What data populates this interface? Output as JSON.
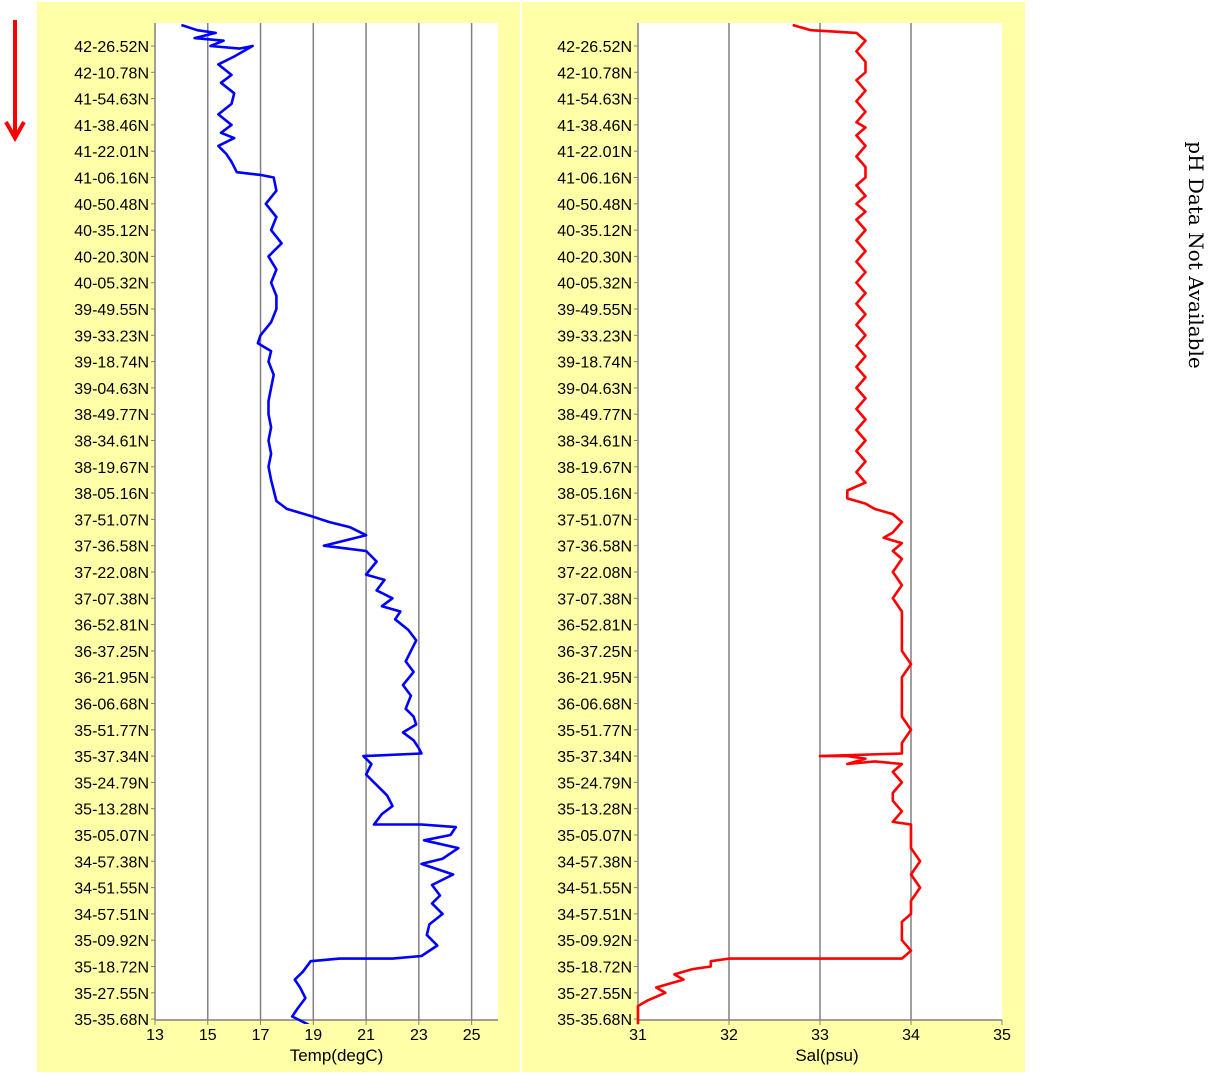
{
  "note": {
    "text": "pH Data Not Available"
  },
  "colors": {
    "panel_bg": "#ffffa8",
    "plot_bg": "#ffffff",
    "grid": "#808080",
    "arrow": "#ff0000"
  },
  "direction_arrow": {
    "icon": "arrow-down-icon",
    "meaning": "downward"
  },
  "chart_data": [
    {
      "type": "line",
      "title": "",
      "xlabel": "Temp(degC)",
      "ylabel": "",
      "xlim": [
        13,
        26
      ],
      "x_ticks": [
        "13",
        "15",
        "17",
        "19",
        "21",
        "23",
        "25"
      ],
      "x_tick_values": [
        13,
        15,
        17,
        19,
        21,
        23,
        25
      ],
      "grid": "vertical",
      "y_categories": [
        "42-26.52N",
        "42-10.78N",
        "41-54.63N",
        "41-38.46N",
        "41-22.01N",
        "41-06.16N",
        "40-50.48N",
        "40-35.12N",
        "40-20.30N",
        "40-05.32N",
        "39-49.55N",
        "39-33.23N",
        "39-18.74N",
        "39-04.63N",
        "38-49.77N",
        "38-34.61N",
        "38-19.67N",
        "38-05.16N",
        "37-51.07N",
        "37-36.58N",
        "37-22.08N",
        "37-07.38N",
        "36-52.81N",
        "36-37.25N",
        "36-21.95N",
        "36-06.68N",
        "35-51.77N",
        "35-37.34N",
        "35-24.79N",
        "35-13.28N",
        "35-05.07N",
        "34-57.38N",
        "34-51.55N",
        "34-57.51N",
        "35-09.92N",
        "35-18.72N",
        "35-27.55N",
        "35-35.68N"
      ],
      "series": [
        {
          "color": "#0000ff",
          "points": [
            [
              14.0,
              -0.8
            ],
            [
              14.6,
              -0.6
            ],
            [
              15.3,
              -0.5
            ],
            [
              14.5,
              -0.3
            ],
            [
              15.6,
              -0.2
            ],
            [
              15.1,
              0.0
            ],
            [
              16.2,
              0.1
            ],
            [
              16.7,
              0.0
            ],
            [
              16.0,
              0.4
            ],
            [
              15.4,
              0.7
            ],
            [
              15.9,
              1.1
            ],
            [
              15.5,
              1.4
            ],
            [
              16.0,
              1.8
            ],
            [
              15.9,
              2.2
            ],
            [
              15.4,
              2.6
            ],
            [
              15.9,
              3.0
            ],
            [
              15.5,
              3.3
            ],
            [
              16.0,
              3.5
            ],
            [
              15.4,
              3.8
            ],
            [
              15.7,
              4.1
            ],
            [
              15.9,
              4.4
            ],
            [
              16.1,
              4.8
            ],
            [
              17.0,
              4.9
            ],
            [
              17.5,
              5.0
            ],
            [
              17.6,
              5.5
            ],
            [
              17.2,
              6.0
            ],
            [
              17.6,
              6.5
            ],
            [
              17.4,
              7.0
            ],
            [
              17.8,
              7.5
            ],
            [
              17.3,
              8.0
            ],
            [
              17.6,
              8.5
            ],
            [
              17.4,
              9.0
            ],
            [
              17.6,
              9.5
            ],
            [
              17.6,
              10.0
            ],
            [
              17.4,
              10.5
            ],
            [
              17.0,
              11.0
            ],
            [
              16.9,
              11.3
            ],
            [
              17.4,
              11.6
            ],
            [
              17.3,
              12.0
            ],
            [
              17.5,
              12.5
            ],
            [
              17.4,
              13.0
            ],
            [
              17.3,
              13.5
            ],
            [
              17.3,
              14.0
            ],
            [
              17.4,
              14.5
            ],
            [
              17.3,
              15.0
            ],
            [
              17.4,
              15.5
            ],
            [
              17.3,
              16.0
            ],
            [
              17.4,
              16.5
            ],
            [
              17.6,
              17.3
            ],
            [
              18.0,
              17.6
            ],
            [
              19.0,
              17.9
            ],
            [
              19.6,
              18.1
            ],
            [
              20.4,
              18.3
            ],
            [
              21.0,
              18.6
            ],
            [
              19.4,
              19.0
            ],
            [
              20.2,
              19.1
            ],
            [
              21.0,
              19.2
            ],
            [
              21.4,
              19.6
            ],
            [
              21.0,
              20.1
            ],
            [
              21.7,
              20.3
            ],
            [
              21.4,
              20.7
            ],
            [
              22.0,
              21.0
            ],
            [
              21.6,
              21.3
            ],
            [
              22.3,
              21.5
            ],
            [
              22.1,
              21.8
            ],
            [
              22.6,
              22.2
            ],
            [
              22.9,
              22.6
            ],
            [
              22.7,
              23.0
            ],
            [
              22.5,
              23.4
            ],
            [
              22.8,
              23.8
            ],
            [
              22.4,
              24.3
            ],
            [
              22.7,
              24.7
            ],
            [
              22.5,
              25.2
            ],
            [
              22.8,
              25.5
            ],
            [
              22.9,
              25.8
            ],
            [
              22.4,
              26.1
            ],
            [
              22.8,
              26.4
            ],
            [
              23.0,
              26.7
            ],
            [
              23.1,
              26.9
            ],
            [
              20.9,
              27.0
            ],
            [
              21.2,
              27.3
            ],
            [
              21.0,
              27.7
            ],
            [
              21.3,
              28.0
            ],
            [
              21.8,
              28.5
            ],
            [
              22.0,
              28.9
            ],
            [
              21.6,
              29.2
            ],
            [
              21.3,
              29.6
            ],
            [
              23.1,
              29.6
            ],
            [
              24.4,
              29.7
            ],
            [
              24.2,
              30.0
            ],
            [
              23.2,
              30.2
            ],
            [
              24.5,
              30.5
            ],
            [
              23.9,
              30.9
            ],
            [
              23.1,
              31.1
            ],
            [
              24.3,
              31.5
            ],
            [
              23.5,
              31.9
            ],
            [
              23.8,
              32.3
            ],
            [
              23.5,
              32.6
            ],
            [
              23.9,
              33.0
            ],
            [
              23.4,
              33.4
            ],
            [
              23.3,
              33.8
            ],
            [
              23.7,
              34.2
            ],
            [
              23.1,
              34.6
            ],
            [
              22.0,
              34.7
            ],
            [
              20.0,
              34.7
            ],
            [
              18.9,
              34.8
            ],
            [
              18.6,
              35.2
            ],
            [
              18.3,
              35.5
            ],
            [
              18.5,
              35.8
            ],
            [
              18.7,
              36.2
            ],
            [
              18.4,
              36.6
            ],
            [
              18.2,
              36.9
            ],
            [
              18.8,
              37.2
            ],
            [
              18.5,
              37.5
            ],
            [
              19.0,
              37.7
            ],
            [
              18.6,
              38.0
            ],
            [
              18.9,
              38.5
            ]
          ]
        }
      ]
    },
    {
      "type": "line",
      "title": "",
      "xlabel": "Sal(psu)",
      "ylabel": "",
      "xlim": [
        31,
        35
      ],
      "x_ticks": [
        "31",
        "32",
        "33",
        "34",
        "35"
      ],
      "x_tick_values": [
        31,
        32,
        33,
        34,
        35
      ],
      "grid": "vertical",
      "y_categories": [
        "42-26.52N",
        "42-10.78N",
        "41-54.63N",
        "41-38.46N",
        "41-22.01N",
        "41-06.16N",
        "40-50.48N",
        "40-35.12N",
        "40-20.30N",
        "40-05.32N",
        "39-49.55N",
        "39-33.23N",
        "39-18.74N",
        "39-04.63N",
        "38-49.77N",
        "38-34.61N",
        "38-19.67N",
        "38-05.16N",
        "37-51.07N",
        "37-36.58N",
        "37-22.08N",
        "37-07.38N",
        "36-52.81N",
        "36-37.25N",
        "36-21.95N",
        "36-06.68N",
        "35-51.77N",
        "35-37.34N",
        "35-24.79N",
        "35-13.28N",
        "35-05.07N",
        "34-57.38N",
        "34-51.55N",
        "34-57.51N",
        "35-09.92N",
        "35-18.72N",
        "35-27.55N",
        "35-35.68N"
      ],
      "series": [
        {
          "color": "#ff0000",
          "points": [
            [
              32.7,
              -0.8
            ],
            [
              32.9,
              -0.6
            ],
            [
              33.4,
              -0.5
            ],
            [
              33.5,
              -0.2
            ],
            [
              33.4,
              0.2
            ],
            [
              33.5,
              0.6
            ],
            [
              33.5,
              1.0
            ],
            [
              33.4,
              1.3
            ],
            [
              33.5,
              1.7
            ],
            [
              33.4,
              2.1
            ],
            [
              33.5,
              2.5
            ],
            [
              33.4,
              2.9
            ],
            [
              33.5,
              3.1
            ],
            [
              33.4,
              3.4
            ],
            [
              33.5,
              3.8
            ],
            [
              33.4,
              4.2
            ],
            [
              33.5,
              4.6
            ],
            [
              33.5,
              5.0
            ],
            [
              33.4,
              5.3
            ],
            [
              33.5,
              5.7
            ],
            [
              33.4,
              6.0
            ],
            [
              33.5,
              6.3
            ],
            [
              33.4,
              6.6
            ],
            [
              33.5,
              7.0
            ],
            [
              33.4,
              7.4
            ],
            [
              33.5,
              7.8
            ],
            [
              33.4,
              8.2
            ],
            [
              33.5,
              8.6
            ],
            [
              33.4,
              9.0
            ],
            [
              33.5,
              9.4
            ],
            [
              33.4,
              9.8
            ],
            [
              33.5,
              10.2
            ],
            [
              33.4,
              10.6
            ],
            [
              33.5,
              11.0
            ],
            [
              33.4,
              11.4
            ],
            [
              33.5,
              11.8
            ],
            [
              33.4,
              12.2
            ],
            [
              33.5,
              12.6
            ],
            [
              33.4,
              13.0
            ],
            [
              33.5,
              13.4
            ],
            [
              33.4,
              13.8
            ],
            [
              33.5,
              14.2
            ],
            [
              33.4,
              14.6
            ],
            [
              33.5,
              15.0
            ],
            [
              33.4,
              15.4
            ],
            [
              33.5,
              15.8
            ],
            [
              33.4,
              16.2
            ],
            [
              33.5,
              16.6
            ],
            [
              33.3,
              16.9
            ],
            [
              33.3,
              17.2
            ],
            [
              33.4,
              17.3
            ],
            [
              33.5,
              17.4
            ],
            [
              33.6,
              17.6
            ],
            [
              33.8,
              17.8
            ],
            [
              33.9,
              18.1
            ],
            [
              33.8,
              18.5
            ],
            [
              33.7,
              18.7
            ],
            [
              33.9,
              18.9
            ],
            [
              33.8,
              19.2
            ],
            [
              33.9,
              19.5
            ],
            [
              33.8,
              20.0
            ],
            [
              33.9,
              20.5
            ],
            [
              33.8,
              21.0
            ],
            [
              33.9,
              21.5
            ],
            [
              33.9,
              22.0
            ],
            [
              33.9,
              22.5
            ],
            [
              33.9,
              23.0
            ],
            [
              34.0,
              23.5
            ],
            [
              33.9,
              24.0
            ],
            [
              33.9,
              24.5
            ],
            [
              33.9,
              25.0
            ],
            [
              33.9,
              25.5
            ],
            [
              34.0,
              26.0
            ],
            [
              33.9,
              26.5
            ],
            [
              33.9,
              26.9
            ],
            [
              33.0,
              27.0
            ],
            [
              33.3,
              27.0
            ],
            [
              33.5,
              27.1
            ],
            [
              33.3,
              27.3
            ],
            [
              33.6,
              27.2
            ],
            [
              33.9,
              27.3
            ],
            [
              33.8,
              27.6
            ],
            [
              33.9,
              28.0
            ],
            [
              33.8,
              28.4
            ],
            [
              33.8,
              28.7
            ],
            [
              33.9,
              29.1
            ],
            [
              33.8,
              29.5
            ],
            [
              34.0,
              29.6
            ],
            [
              34.0,
              30.0
            ],
            [
              34.0,
              30.5
            ],
            [
              34.1,
              31.0
            ],
            [
              34.0,
              31.5
            ],
            [
              34.1,
              32.0
            ],
            [
              34.0,
              32.5
            ],
            [
              34.0,
              33.0
            ],
            [
              33.9,
              33.3
            ],
            [
              33.9,
              33.6
            ],
            [
              33.9,
              34.0
            ],
            [
              34.0,
              34.4
            ],
            [
              33.9,
              34.7
            ],
            [
              32.0,
              34.7
            ],
            [
              31.8,
              34.8
            ],
            [
              31.8,
              35.0
            ],
            [
              31.6,
              35.1
            ],
            [
              31.4,
              35.3
            ],
            [
              31.5,
              35.5
            ],
            [
              31.2,
              35.8
            ],
            [
              31.3,
              36.0
            ],
            [
              31.1,
              36.3
            ],
            [
              31.0,
              36.5
            ],
            [
              31.0,
              37.5
            ],
            [
              31.1,
              37.6
            ]
          ]
        }
      ]
    }
  ]
}
